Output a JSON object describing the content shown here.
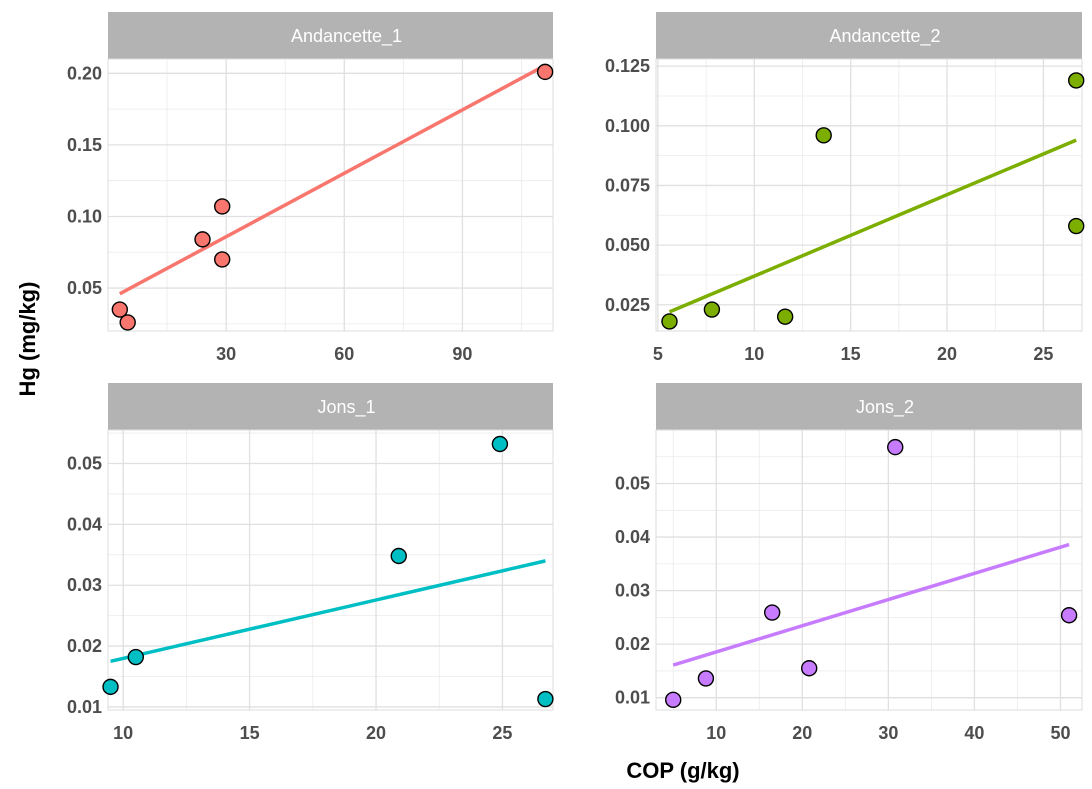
{
  "figure": {
    "xlabel": "COP (g/kg)",
    "ylabel": "Hg (mg/kg)"
  },
  "chart_data": [
    {
      "type": "scatter",
      "title": "Andancette_1",
      "color": "#f8766d",
      "xlim": [
        0,
        113
      ],
      "ylim": [
        0.02,
        0.21
      ],
      "xticks": [
        30,
        60,
        90
      ],
      "yticks": [
        0.05,
        0.1,
        0.15,
        0.2
      ],
      "xtick_labels": [
        "30",
        "60",
        "90"
      ],
      "ytick_labels": [
        "0.05",
        "0.10",
        "0.15",
        "0.20"
      ],
      "points": [
        {
          "x": 3,
          "y": 0.035
        },
        {
          "x": 5,
          "y": 0.026
        },
        {
          "x": 24,
          "y": 0.084
        },
        {
          "x": 29,
          "y": 0.107
        },
        {
          "x": 29,
          "y": 0.07
        },
        {
          "x": 111,
          "y": 0.201
        }
      ],
      "fit": {
        "x1": 3,
        "y1": 0.046,
        "x2": 110,
        "y2": 0.204
      }
    },
    {
      "type": "scatter",
      "title": "Andancette_2",
      "color": "#7cae00",
      "xlim": [
        4.9,
        27.0
      ],
      "ylim": [
        0.014,
        0.128
      ],
      "xticks": [
        5,
        10,
        15,
        20,
        25
      ],
      "yticks": [
        0.025,
        0.05,
        0.075,
        0.1,
        0.125
      ],
      "xtick_labels": [
        "5",
        "10",
        "15",
        "20",
        "25"
      ],
      "ytick_labels": [
        "0.025",
        "0.050",
        "0.075",
        "0.100",
        "0.125"
      ],
      "points": [
        {
          "x": 5.6,
          "y": 0.018
        },
        {
          "x": 7.8,
          "y": 0.023
        },
        {
          "x": 11.6,
          "y": 0.02
        },
        {
          "x": 13.6,
          "y": 0.096
        },
        {
          "x": 26.7,
          "y": 0.119
        },
        {
          "x": 26.7,
          "y": 0.058
        }
      ],
      "fit": {
        "x1": 5.6,
        "y1": 0.022,
        "x2": 26.7,
        "y2": 0.094
      }
    },
    {
      "type": "scatter",
      "title": "Jons_1",
      "color": "#00bfc4",
      "xlim": [
        9.4,
        27.0
      ],
      "ylim": [
        0.0095,
        0.0555
      ],
      "xticks": [
        10,
        15,
        20,
        25
      ],
      "yticks": [
        0.01,
        0.02,
        0.03,
        0.04,
        0.05
      ],
      "xtick_labels": [
        "10",
        "15",
        "20",
        "25"
      ],
      "ytick_labels": [
        "0.01",
        "0.02",
        "0.03",
        "0.04",
        "0.05"
      ],
      "points": [
        {
          "x": 9.5,
          "y": 0.0133
        },
        {
          "x": 10.5,
          "y": 0.0182
        },
        {
          "x": 20.9,
          "y": 0.0348
        },
        {
          "x": 24.9,
          "y": 0.0532
        },
        {
          "x": 26.7,
          "y": 0.0113
        }
      ],
      "fit": {
        "x1": 9.5,
        "y1": 0.0175,
        "x2": 26.7,
        "y2": 0.034
      }
    },
    {
      "type": "scatter",
      "title": "Jons_2",
      "color": "#c77cff",
      "xlim": [
        3.0,
        52.5
      ],
      "ylim": [
        0.0077,
        0.06
      ],
      "xticks": [
        10,
        20,
        30,
        40,
        50
      ],
      "yticks": [
        0.01,
        0.02,
        0.03,
        0.04,
        0.05
      ],
      "xtick_labels": [
        "10",
        "20",
        "30",
        "40",
        "50"
      ],
      "ytick_labels": [
        "0.01",
        "0.02",
        "0.03",
        "0.04",
        "0.05"
      ],
      "points": [
        {
          "x": 5,
          "y": 0.0096
        },
        {
          "x": 8.8,
          "y": 0.0136
        },
        {
          "x": 16.5,
          "y": 0.0259
        },
        {
          "x": 20.8,
          "y": 0.0155
        },
        {
          "x": 30.8,
          "y": 0.0568
        },
        {
          "x": 51,
          "y": 0.0254
        }
      ],
      "fit": {
        "x1": 5,
        "y1": 0.0161,
        "x2": 51,
        "y2": 0.0386
      }
    }
  ]
}
